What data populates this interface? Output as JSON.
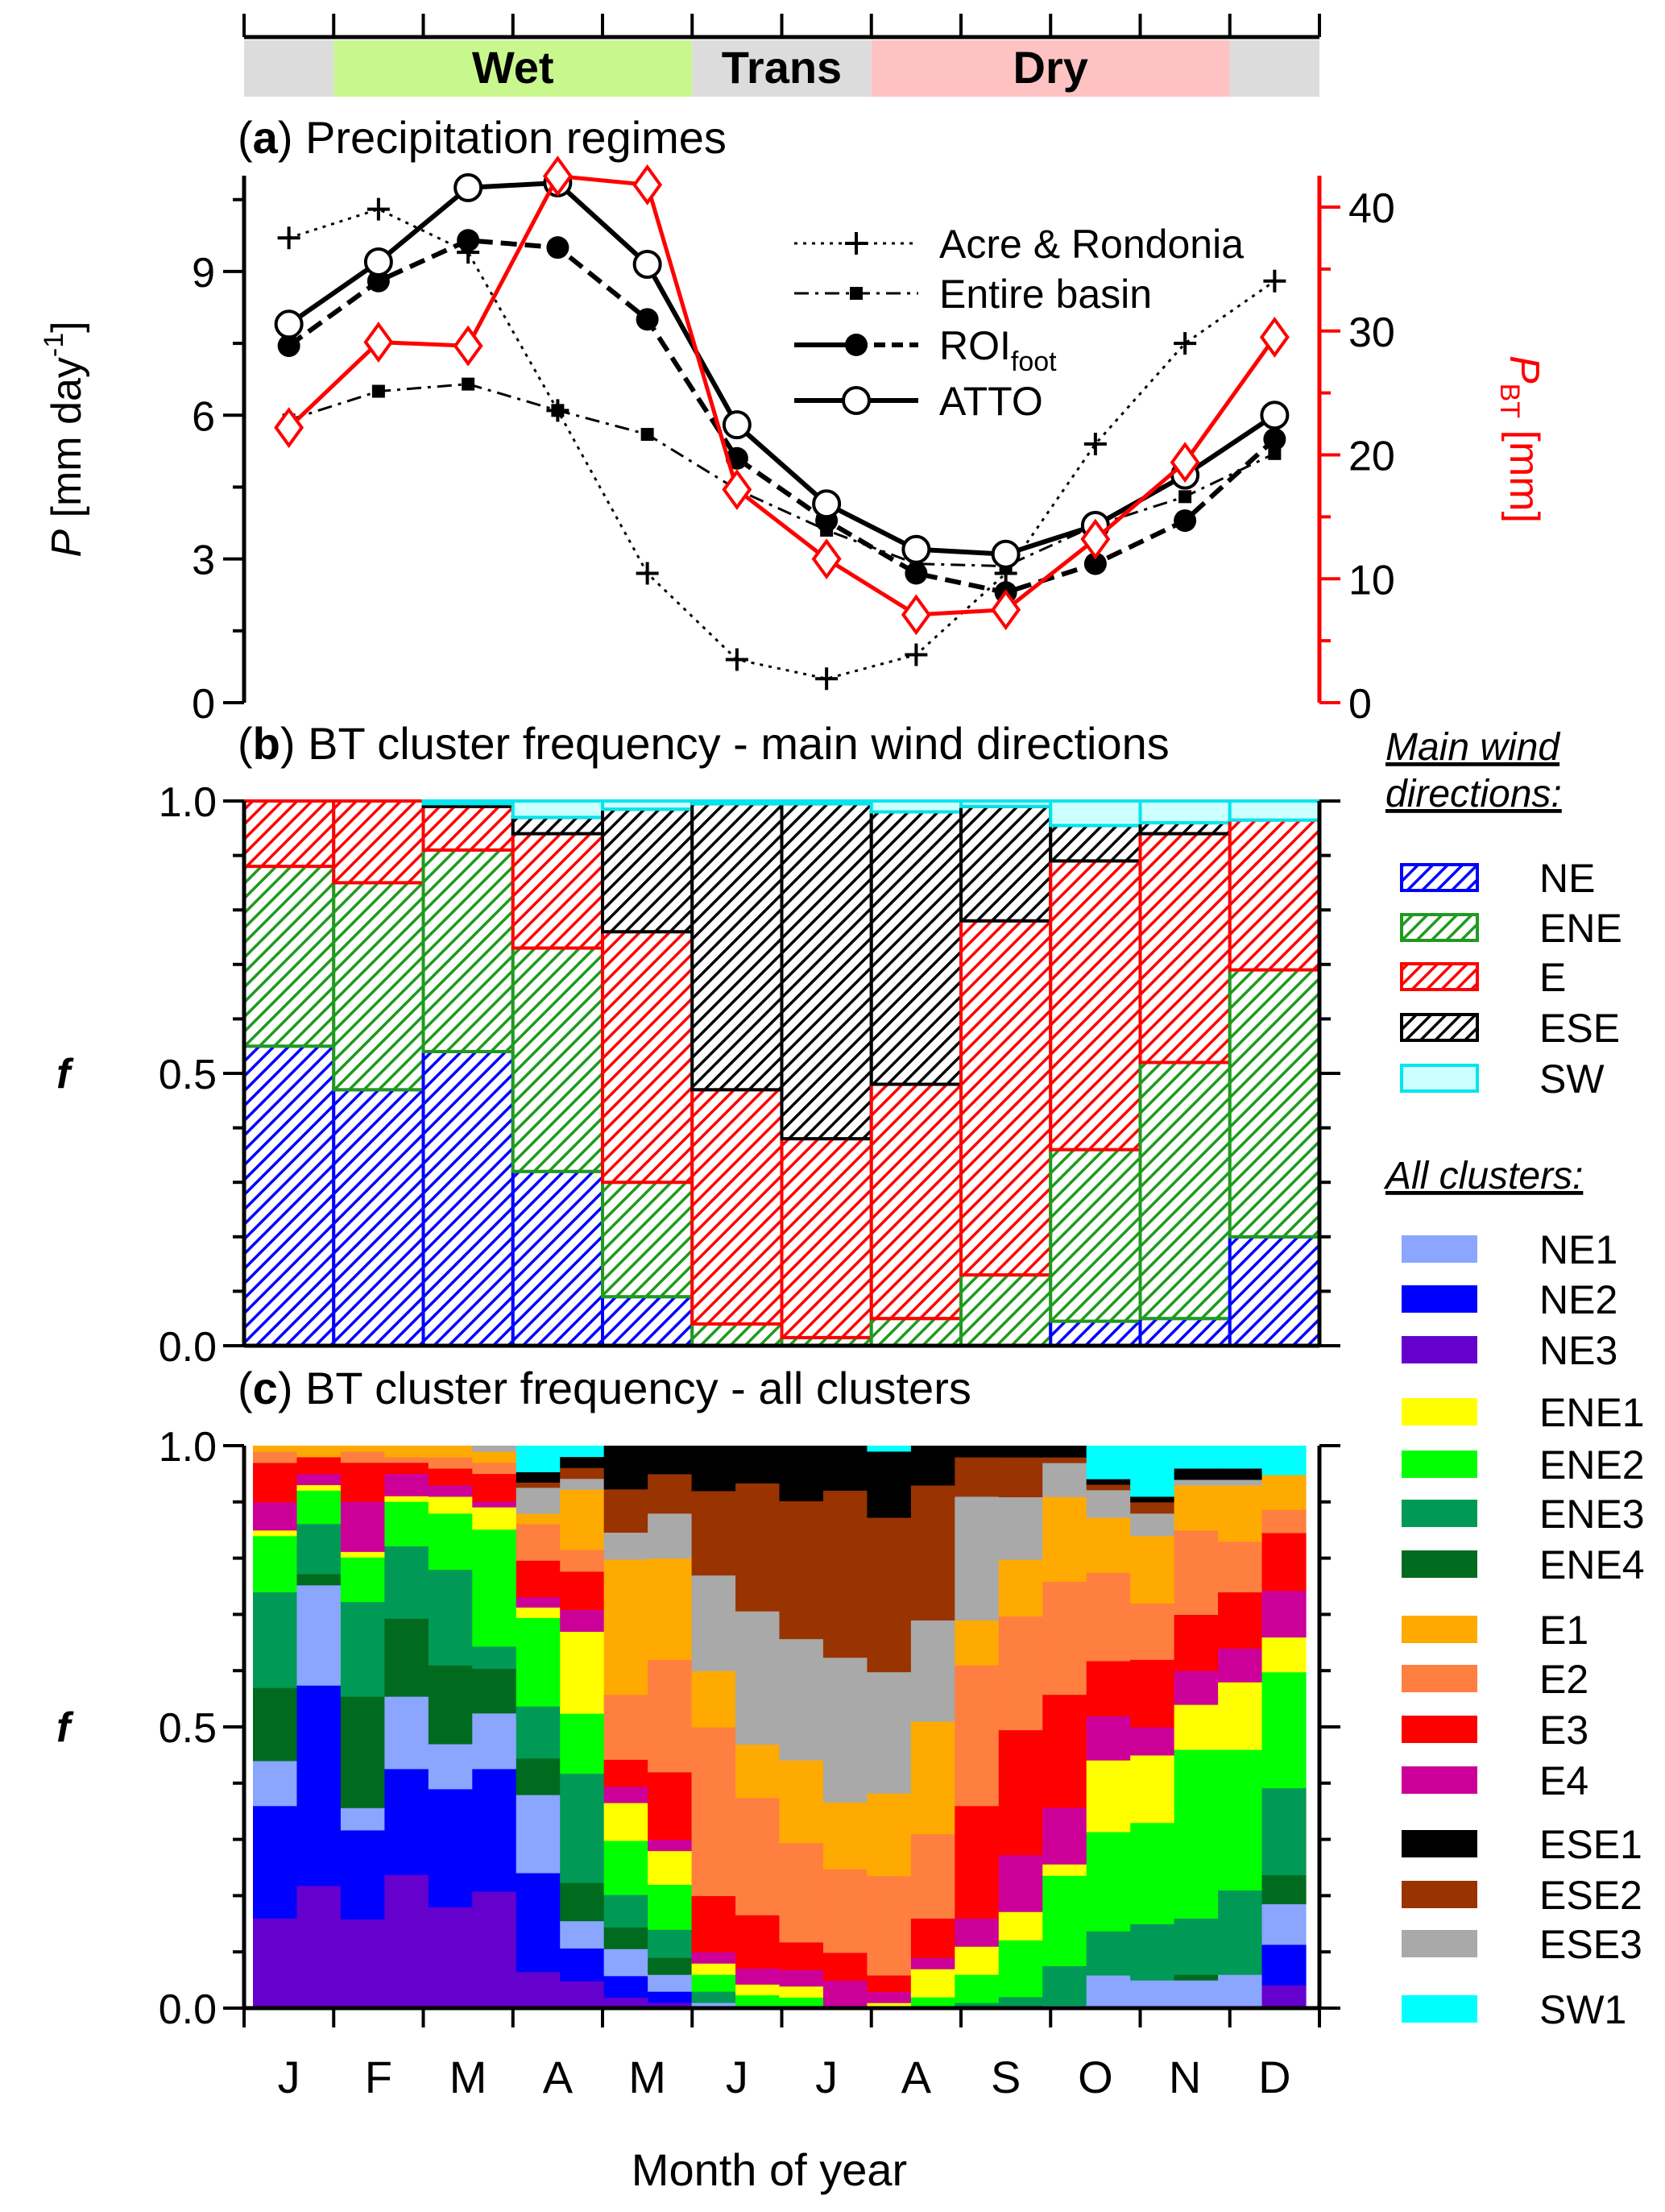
{
  "season_bar": {
    "segments": [
      {
        "label": "",
        "months": [
          "J"
        ],
        "color": "#dcdcdc"
      },
      {
        "label": "Wet",
        "months": [
          "F",
          "M",
          "A",
          "M"
        ],
        "color": "#c8f78e"
      },
      {
        "label": "Trans",
        "months": [
          "J",
          "J"
        ],
        "color": "#dcdcdc"
      },
      {
        "label": "Dry",
        "months": [
          "A",
          "S",
          "O",
          "N"
        ],
        "color": "#ffc2c2"
      },
      {
        "label": "",
        "months": [
          "D"
        ],
        "color": "#dcdcdc"
      }
    ]
  },
  "months": [
    "J",
    "F",
    "M",
    "A",
    "M",
    "J",
    "J",
    "A",
    "S",
    "O",
    "N",
    "D"
  ],
  "xlabel": "Month of year",
  "chart_data": [
    {
      "panel_label": "a",
      "type": "line",
      "title": "Precipitation regimes",
      "categories": [
        "J",
        "F",
        "M",
        "A",
        "M",
        "J",
        "J",
        "A",
        "S",
        "O",
        "N",
        "D"
      ],
      "ylabel": {
        "var": "P",
        "unit": " [mm day",
        "sup": "-1",
        "end": "]"
      },
      "y2label": {
        "var": "P",
        "sub": "BT",
        "unit": " [mm]"
      },
      "ylim": [
        0,
        11
      ],
      "y2lim": [
        0,
        43
      ],
      "yticks": [
        0,
        3,
        6,
        9
      ],
      "y2ticks": [
        0,
        10,
        20,
        30,
        40
      ],
      "y2_color": "#ff0000",
      "series": [
        {
          "name": "Acre & Rondonia",
          "axis": "left",
          "style": "dotted-plus",
          "color": "#000000",
          "values": [
            9.7,
            10.3,
            9.4,
            6.1,
            2.7,
            0.9,
            0.5,
            1.0,
            2.7,
            5.4,
            7.5,
            8.8
          ]
        },
        {
          "name": "Entire basin",
          "axis": "left",
          "style": "dashdot-square",
          "color": "#000000",
          "values": [
            5.9,
            6.5,
            6.65,
            6.1,
            5.6,
            4.45,
            3.6,
            2.9,
            2.85,
            3.7,
            4.3,
            5.2
          ]
        },
        {
          "name": "ROI",
          "name_sub": "foot",
          "axis": "left",
          "style": "dashed-filled-circle",
          "color": "#000000",
          "values": [
            7.45,
            8.8,
            9.65,
            9.5,
            8.0,
            5.1,
            3.8,
            2.7,
            2.3,
            2.9,
            3.8,
            5.5
          ]
        },
        {
          "name": "ATTO",
          "axis": "left",
          "style": "solid-open-circle",
          "color": "#000000",
          "values": [
            7.9,
            9.2,
            10.75,
            10.85,
            9.15,
            5.8,
            4.15,
            3.2,
            3.1,
            3.7,
            4.75,
            6.0
          ]
        },
        {
          "name": "",
          "axis": "right",
          "style": "solid-open-diamond",
          "color": "#ff0000",
          "values": [
            22.2,
            29.1,
            28.8,
            42.5,
            41.8,
            17.2,
            11.6,
            7.1,
            7.5,
            13.2,
            19.4,
            29.5
          ]
        }
      ]
    },
    {
      "panel_label": "b",
      "type": "bar",
      "stacked": true,
      "title": "BT cluster frequency - main wind directions",
      "categories": [
        "J",
        "F",
        "M",
        "A",
        "M",
        "J",
        "J",
        "A",
        "S",
        "O",
        "N",
        "D"
      ],
      "ylabel": "f",
      "ylim": [
        0,
        1
      ],
      "yticks": [
        "0.0",
        "0.5",
        "1.0"
      ],
      "legend_title": [
        "Main wind",
        "directions:"
      ],
      "series": [
        {
          "name": "NE",
          "color": "#0000ff",
          "fill": "hatch",
          "values": [
            0.55,
            0.47,
            0.54,
            0.32,
            0.09,
            0,
            0,
            0,
            0,
            0.045,
            0.05,
            0.2
          ]
        },
        {
          "name": "ENE",
          "color": "#1f9a1f",
          "fill": "hatch",
          "values": [
            0.33,
            0.38,
            0.37,
            0.41,
            0.21,
            0.04,
            0.015,
            0.05,
            0.13,
            0.315,
            0.47,
            0.49
          ]
        },
        {
          "name": "E",
          "color": "#ff0000",
          "fill": "hatch",
          "values": [
            0.12,
            0.15,
            0.08,
            0.21,
            0.46,
            0.43,
            0.365,
            0.43,
            0.65,
            0.53,
            0.42,
            0.275
          ]
        },
        {
          "name": "ESE",
          "color": "#000000",
          "fill": "hatch",
          "values": [
            0,
            0,
            0.005,
            0.03,
            0.225,
            0.525,
            0.615,
            0.5,
            0.21,
            0.065,
            0.02,
            0
          ]
        },
        {
          "name": "SW",
          "color": "#00e5ee",
          "fill": "#ccffff",
          "values": [
            0,
            0,
            0.005,
            0.03,
            0.015,
            0.005,
            0.005,
            0.02,
            0.01,
            0.045,
            0.04,
            0.035
          ]
        }
      ]
    },
    {
      "panel_label": "c",
      "type": "bar",
      "stacked": true,
      "title": "BT cluster frequency - all clusters",
      "x_tick_labels": [
        "J",
        "F",
        "M",
        "A",
        "M",
        "J",
        "J",
        "A",
        "S",
        "O",
        "N",
        "D"
      ],
      "bars_per_month": 2,
      "ylabel": "f",
      "ylim": [
        0,
        1
      ],
      "yticks": [
        "0.0",
        "0.5",
        "1.0"
      ],
      "legend_title": "All clusters:",
      "series": [
        {
          "name": "NE3",
          "color": "#6600cc",
          "values": [
            0.16,
            0.22,
            0.16,
            0.24,
            0.18,
            0.21,
            0.07,
            0.05,
            0.02,
            0.01,
            0,
            0,
            0,
            0,
            0,
            0,
            0,
            0,
            0,
            0,
            0,
            0,
            0,
            0.04
          ]
        },
        {
          "name": "NE2",
          "color": "#0000ff",
          "values": [
            0.2,
            0.36,
            0.16,
            0.19,
            0.21,
            0.22,
            0.19,
            0.06,
            0.04,
            0.02,
            0,
            0,
            0,
            0,
            0,
            0,
            0,
            0,
            0,
            0,
            0,
            0,
            0,
            0.07
          ]
        },
        {
          "name": "NE1",
          "color": "#8aa6ff",
          "values": [
            0.08,
            0.18,
            0.04,
            0.13,
            0.08,
            0.1,
            0.15,
            0.05,
            0.05,
            0.03,
            0.01,
            0.005,
            0,
            0,
            0,
            0,
            0,
            0,
            0.005,
            0.06,
            0.05,
            0.05,
            0.06,
            0.07
          ]
        },
        {
          "name": "ENE4",
          "color": "#006b1f",
          "values": [
            0.13,
            0.02,
            0.2,
            0.14,
            0.14,
            0.08,
            0.07,
            0.07,
            0.04,
            0.03,
            0,
            0,
            0,
            0,
            0,
            0,
            0,
            0,
            0,
            0,
            0,
            0.01,
            0,
            0.05
          ]
        },
        {
          "name": "ENE3",
          "color": "#009955",
          "values": [
            0.17,
            0.09,
            0.17,
            0.13,
            0.17,
            0.04,
            0.1,
            0.2,
            0.06,
            0.05,
            0.02,
            0,
            0,
            0,
            0,
            0,
            0.01,
            0.02,
            0.07,
            0.08,
            0.1,
            0.1,
            0.15,
            0.15
          ]
        },
        {
          "name": "ENE2",
          "color": "#00ff00",
          "values": [
            0.1,
            0.06,
            0.08,
            0.08,
            0.1,
            0.21,
            0.17,
            0.11,
            0.1,
            0.08,
            0.03,
            0.02,
            0.02,
            0,
            0,
            0.02,
            0.05,
            0.1,
            0.16,
            0.18,
            0.18,
            0.3,
            0.25,
            0.2
          ]
        },
        {
          "name": "ENE1",
          "color": "#ffff00",
          "values": [
            0.01,
            0.01,
            0.01,
            0.01,
            0.03,
            0.04,
            0.02,
            0.15,
            0.07,
            0.06,
            0.02,
            0.02,
            0.02,
            0,
            0.01,
            0.05,
            0.05,
            0.05,
            0.02,
            0.13,
            0.12,
            0.08,
            0.12,
            0.06
          ]
        },
        {
          "name": "E1",
          "color": "#ffaa00",
          "values": [
            0.01,
            0.02,
            0.01,
            0.02,
            0.02,
            0.02,
            0.02,
            0.11,
            0.25,
            0.18,
            0.1,
            0.1,
            0.15,
            0.12,
            0.15,
            0.2,
            0.08,
            0.1,
            0.15,
            0.1,
            0.12,
            0.08,
            0.1,
            0.06
          ]
        },
        {
          "name": "E2",
          "color": "#ff7f40",
          "values": [
            0.02,
            0,
            0.02,
            0.01,
            0.02,
            0.02,
            0.07,
            0.04,
            0.12,
            0.2,
            0.3,
            0.22,
            0.18,
            0.15,
            0.18,
            0.15,
            0.25,
            0.2,
            0.2,
            0.16,
            0.1,
            0.15,
            0.09,
            0.04
          ]
        },
        {
          "name": "E3",
          "color": "#ff0000",
          "values": [
            0.07,
            0.03,
            0.07,
            0.02,
            0.03,
            0.05,
            0.07,
            0.07,
            0.05,
            0.12,
            0.1,
            0.1,
            0.05,
            0.05,
            0.03,
            0.07,
            0.2,
            0.22,
            0.2,
            0.1,
            0.12,
            0.1,
            0.1,
            0.1
          ]
        },
        {
          "name": "E4",
          "color": "#cc0099",
          "values": [
            0.05,
            0.02,
            0.09,
            0.04,
            0.02,
            0.01,
            0.02,
            0.04,
            0.03,
            0.02,
            0.02,
            0.03,
            0.03,
            0.05,
            0.02,
            0.02,
            0.05,
            0.1,
            0.1,
            0.08,
            0.05,
            0.06,
            0.06,
            0.08
          ]
        },
        {
          "name": "ESE1",
          "color": "#000000",
          "values": [
            0,
            0,
            0,
            0,
            0,
            0,
            0.02,
            0.02,
            0.08,
            0.05,
            0.08,
            0.07,
            0.1,
            0.08,
            0.12,
            0.07,
            0.02,
            0.02,
            0.02,
            0.01,
            0.01,
            0.02,
            0.02,
            0
          ]
        },
        {
          "name": "ESE2",
          "color": "#993300",
          "values": [
            0,
            0,
            0,
            0,
            0,
            0,
            0.01,
            0.02,
            0.08,
            0.07,
            0.15,
            0.24,
            0.25,
            0.3,
            0.28,
            0.24,
            0.07,
            0.07,
            0.01,
            0.01,
            0.02,
            0,
            0,
            0
          ]
        },
        {
          "name": "ESE3",
          "color": "#a9a9a9",
          "values": [
            0,
            0,
            0,
            0,
            0,
            0.01,
            0.05,
            0.02,
            0.05,
            0.08,
            0.17,
            0.25,
            0.22,
            0.26,
            0.22,
            0.18,
            0.22,
            0.11,
            0.06,
            0.05,
            0.04,
            0.01,
            0.01,
            0
          ]
        },
        {
          "name": "SW1",
          "color": "#00ffff",
          "values": [
            0,
            0,
            0,
            0,
            0,
            0,
            0.05,
            0.02,
            0,
            0,
            0,
            0,
            0,
            0,
            0.01,
            0,
            0,
            0,
            0,
            0.06,
            0.09,
            0.04,
            0.04,
            0.05
          ]
        }
      ],
      "stack_order_bottom_to_top": [
        "NE3",
        "NE2",
        "NE1",
        "ENE4",
        "ENE3",
        "ENE2",
        "ENE1",
        "E4",
        "E3",
        "E2",
        "E1",
        "ESE3",
        "ESE2",
        "ESE1",
        "SW1"
      ]
    }
  ]
}
